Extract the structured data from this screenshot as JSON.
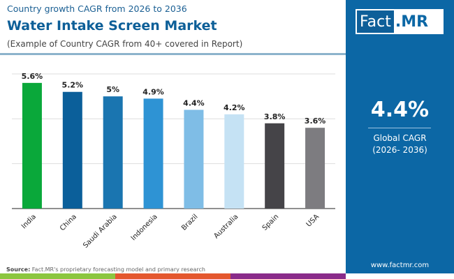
{
  "header": {
    "subtitle": "Country growth CAGR from 2026 to 2036",
    "title": "Water Intake Screen Market",
    "note": "(Example of Country CAGR from 40+ covered in Report)"
  },
  "logo": {
    "part1": "Fact",
    "part2": ".MR"
  },
  "summary": {
    "value": "4.4%",
    "label_line1": "Global CAGR",
    "label_line2": "(2026- 2036)"
  },
  "footer": {
    "source_label": "Source:",
    "source_text": " Fact.MR's proprietary forecasting model and primary research",
    "website": "www.factmr.com"
  },
  "colors": {
    "panel": "#0c67a5",
    "stripes": [
      "#8cc63f",
      "#e4572e",
      "#8a2b8a"
    ]
  },
  "chart_data": {
    "type": "bar",
    "categories": [
      "India",
      "China",
      "Saudi Arabia",
      "Indonesia",
      "Brazil",
      "Australia",
      "Spain",
      "USA"
    ],
    "values": [
      5.6,
      5.2,
      5,
      4.9,
      4.4,
      4.2,
      3.8,
      3.6
    ],
    "labels": [
      "5.6%",
      "5.2%",
      "5%",
      "4.9%",
      "4.4%",
      "4.2%",
      "3.8%",
      "3.6%"
    ],
    "colors": [
      "#0aa83a",
      "#0b5f9a",
      "#1a75b0",
      "#2e93d4",
      "#7fbde6",
      "#c5e2f4",
      "#454448",
      "#7d7c80"
    ],
    "ylim": [
      0,
      6
    ],
    "grid": true,
    "yticks": [
      0,
      2,
      4,
      6
    ],
    "xlabel": "",
    "ylabel": ""
  }
}
